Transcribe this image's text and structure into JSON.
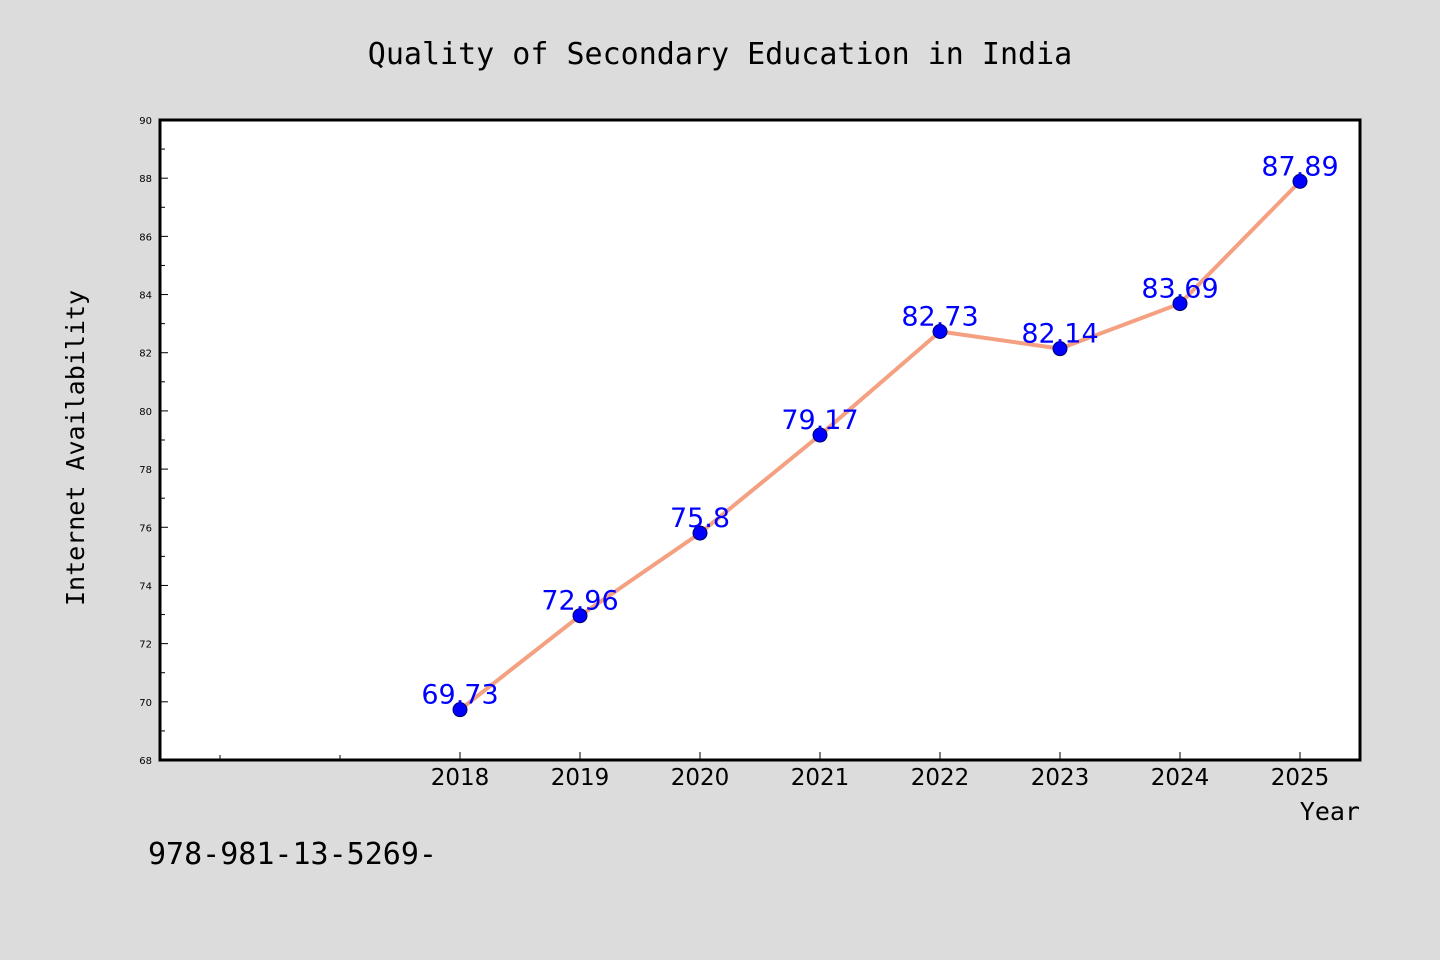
{
  "chart_data": {
    "type": "line",
    "title": "Quality of Secondary Education in India",
    "xlabel": "Year",
    "ylabel": "Internet Availability",
    "categories": [
      "2018",
      "2019",
      "2020",
      "2021",
      "2022",
      "2023",
      "2024",
      "2025"
    ],
    "series": [
      {
        "values": [
          69.73,
          72.96,
          75.8,
          79.17,
          82.73,
          82.14,
          83.69,
          87.89
        ],
        "labels": [
          "69.73",
          "72.96",
          "75.8",
          "79.17",
          "82.73",
          "82.14",
          "83.69",
          "87.89"
        ]
      }
    ],
    "ylim": [
      68,
      90
    ],
    "yticks": [
      "68",
      "70",
      "72",
      "74",
      "76",
      "78",
      "80",
      "82",
      "84",
      "86",
      "88",
      "90"
    ],
    "x_slots_before_first": 2,
    "grid": false,
    "line_color": "#f4a081",
    "marker_color": "#0000ff",
    "label_color": "#0000ff",
    "background_color": "#dcdcdc",
    "plot_background_color": "#ffffff"
  },
  "footnote": "978-981-13-5269-"
}
